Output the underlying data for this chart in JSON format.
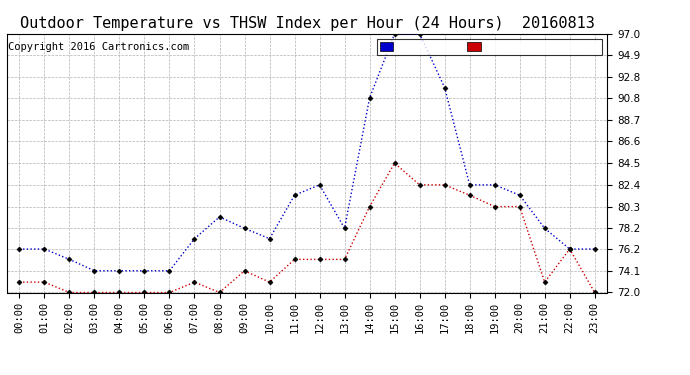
{
  "title": "Outdoor Temperature vs THSW Index per Hour (24 Hours)  20160813",
  "copyright": "Copyright 2016 Cartronics.com",
  "hours": [
    "00:00",
    "01:00",
    "02:00",
    "03:00",
    "04:00",
    "05:00",
    "06:00",
    "07:00",
    "08:00",
    "09:00",
    "10:00",
    "11:00",
    "12:00",
    "13:00",
    "14:00",
    "15:00",
    "16:00",
    "17:00",
    "18:00",
    "19:00",
    "20:00",
    "21:00",
    "22:00",
    "23:00"
  ],
  "thsw": [
    76.2,
    76.2,
    75.2,
    74.1,
    74.1,
    74.1,
    74.1,
    77.2,
    79.3,
    78.2,
    77.2,
    81.4,
    82.4,
    78.2,
    90.8,
    97.0,
    97.0,
    91.8,
    82.4,
    82.4,
    81.4,
    78.2,
    76.2,
    76.2
  ],
  "temp": [
    73.0,
    73.0,
    72.0,
    72.0,
    72.0,
    72.0,
    72.0,
    73.0,
    72.0,
    74.1,
    73.0,
    75.2,
    75.2,
    75.2,
    80.3,
    84.5,
    82.4,
    82.4,
    81.4,
    80.3,
    80.3,
    73.0,
    76.2,
    72.0
  ],
  "ylim_min": 72.0,
  "ylim_max": 97.0,
  "yticks": [
    72.0,
    74.1,
    76.2,
    78.2,
    80.3,
    82.4,
    84.5,
    86.6,
    88.7,
    90.8,
    92.8,
    94.9,
    97.0
  ],
  "thsw_color": "#0000cc",
  "temp_color": "#cc0000",
  "background_color": "#ffffff",
  "grid_color": "#aaaaaa",
  "legend_thsw_bg": "#0000cc",
  "legend_temp_bg": "#cc0000",
  "legend_text_color": "#ffffff",
  "title_fontsize": 11,
  "copyright_fontsize": 7.5,
  "tick_fontsize": 7.5,
  "legend_fontsize": 8
}
